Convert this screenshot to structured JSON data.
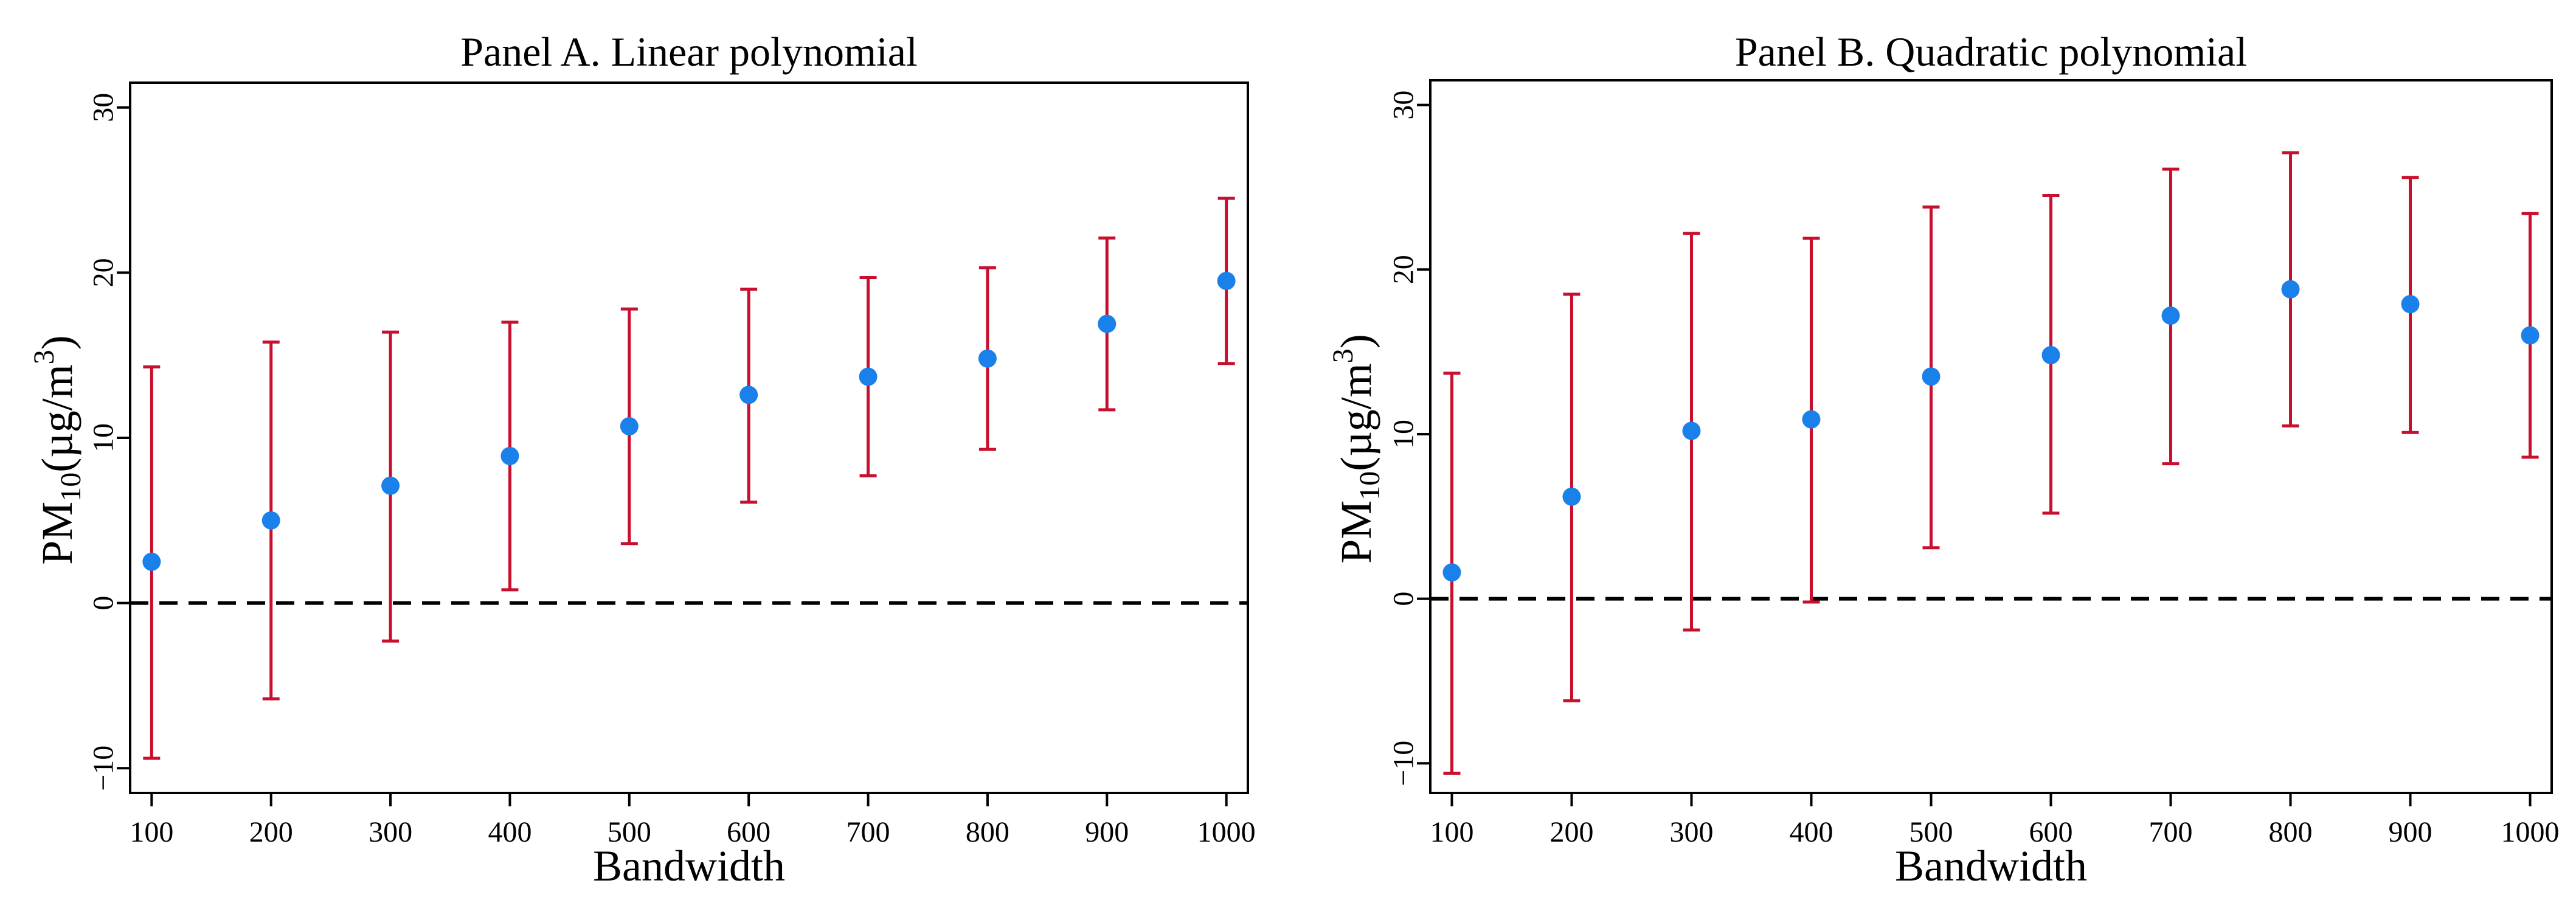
{
  "chart_data": [
    {
      "type": "scatter",
      "title": "Panel A. Linear polynomial",
      "xlabel": "Bandwidth",
      "ylabel": {
        "base": "PM",
        "sub": "10",
        "unit": "(µg/m",
        "sup": "3",
        "close": ")"
      },
      "x": [
        100,
        200,
        300,
        400,
        500,
        600,
        700,
        800,
        900,
        1000
      ],
      "estimate": [
        2.5,
        5.0,
        7.1,
        8.9,
        10.7,
        12.6,
        13.7,
        14.8,
        16.9,
        19.5
      ],
      "ci_lower": [
        -9.4,
        -5.8,
        -2.3,
        0.8,
        3.6,
        6.1,
        7.7,
        9.3,
        11.7,
        14.5
      ],
      "ci_upper": [
        14.3,
        15.8,
        16.4,
        17.0,
        17.8,
        19.0,
        19.7,
        20.3,
        22.1,
        24.5
      ],
      "xticks": [
        "100",
        "200",
        "300",
        "400",
        "500",
        "600",
        "700",
        "800",
        "900",
        "1000"
      ],
      "yticks": [
        -10,
        0,
        10,
        20,
        30
      ],
      "ytick_labels": [
        "−10",
        "0",
        "10",
        "20",
        "30"
      ],
      "xlim": [
        82,
        1018
      ],
      "ylim": [
        -11.5,
        31.5
      ],
      "reference_line": 0
    },
    {
      "type": "scatter",
      "title": "Panel B. Quadratic polynomial",
      "xlabel": "Bandwidth",
      "ylabel": {
        "base": "PM",
        "sub": "10",
        "unit": "(µg/m",
        "sup": "3",
        "close": ")"
      },
      "x": [
        100,
        200,
        300,
        400,
        500,
        600,
        700,
        800,
        900,
        1000
      ],
      "estimate": [
        1.6,
        6.2,
        10.2,
        10.9,
        13.5,
        14.8,
        17.2,
        18.8,
        17.9,
        16.0
      ],
      "ci_lower": [
        -10.6,
        -6.2,
        -1.9,
        -0.2,
        3.1,
        5.2,
        8.2,
        10.5,
        10.1,
        8.6
      ],
      "ci_upper": [
        13.7,
        18.5,
        22.2,
        21.9,
        23.8,
        24.5,
        26.1,
        27.1,
        25.6,
        23.4
      ],
      "xticks": [
        "100",
        "200",
        "300",
        "400",
        "500",
        "600",
        "700",
        "800",
        "900",
        "1000"
      ],
      "yticks": [
        -10,
        0,
        10,
        20,
        30
      ],
      "ytick_labels": [
        "−10",
        "0",
        "10",
        "20",
        "30"
      ],
      "xlim": [
        82,
        1018
      ],
      "ylim": [
        -11.8,
        31.5
      ],
      "reference_line": 0
    }
  ],
  "colors": {
    "point": "#1a80ea",
    "ci": "#c8102e",
    "axis": "#000000",
    "background": "#ffffff"
  }
}
